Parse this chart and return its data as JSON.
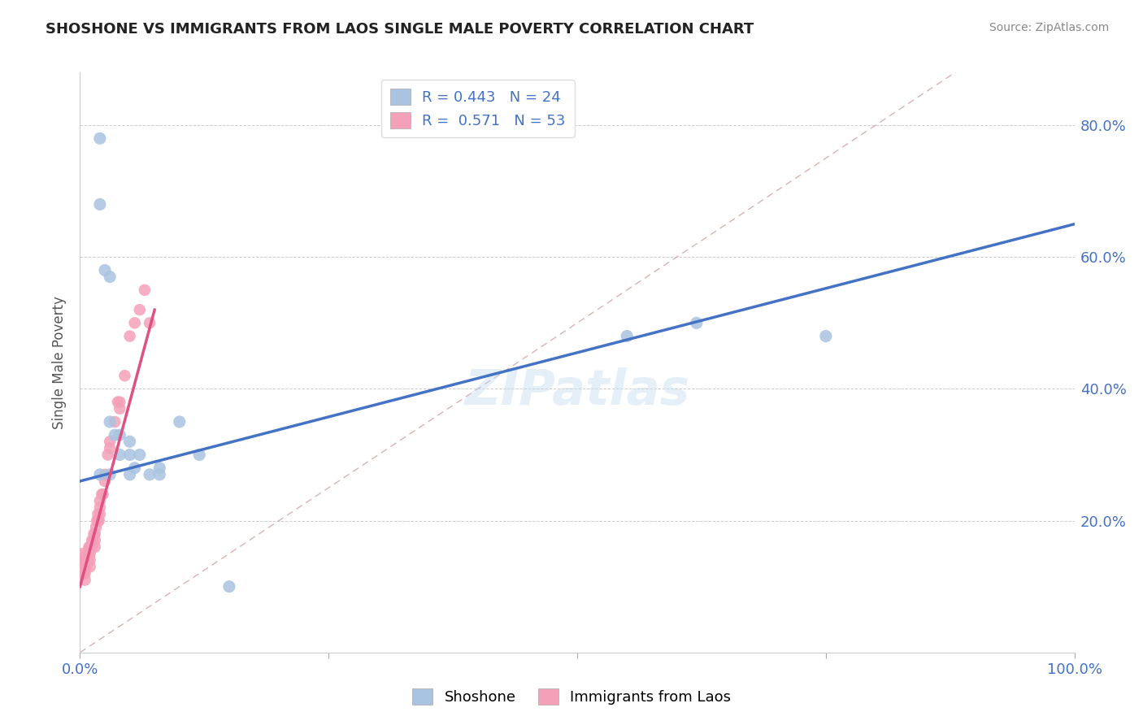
{
  "title": "SHOSHONE VS IMMIGRANTS FROM LAOS SINGLE MALE POVERTY CORRELATION CHART",
  "source": "Source: ZipAtlas.com",
  "ylabel": "Single Male Poverty",
  "watermark": "ZIPatlas",
  "shoshone_R": 0.443,
  "shoshone_N": 24,
  "laos_R": 0.571,
  "laos_N": 53,
  "shoshone_color": "#a8c4e0",
  "laos_color": "#f4a0b8",
  "shoshone_line_color": "#4472c4",
  "laos_line_color": "#e05080",
  "diagonal_color": "#d0a0a0",
  "right_axis_color": "#4472c4",
  "shoshone_x": [
    0.02,
    0.02,
    0.025,
    0.03,
    0.03,
    0.035,
    0.04,
    0.04,
    0.05,
    0.05,
    0.055,
    0.06,
    0.07,
    0.08,
    0.1,
    0.12,
    0.15,
    0.55,
    0.62,
    0.75,
    0.02,
    0.03,
    0.05,
    0.08
  ],
  "shoshone_y": [
    0.78,
    0.68,
    0.58,
    0.57,
    0.35,
    0.33,
    0.33,
    0.3,
    0.32,
    0.3,
    0.28,
    0.3,
    0.27,
    0.28,
    0.35,
    0.3,
    0.1,
    0.48,
    0.5,
    0.48,
    0.27,
    0.27,
    0.27,
    0.27
  ],
  "laos_x": [
    0.002,
    0.003,
    0.003,
    0.004,
    0.004,
    0.005,
    0.005,
    0.005,
    0.005,
    0.006,
    0.006,
    0.007,
    0.007,
    0.008,
    0.008,
    0.009,
    0.009,
    0.01,
    0.01,
    0.01,
    0.01,
    0.012,
    0.012,
    0.013,
    0.014,
    0.015,
    0.015,
    0.015,
    0.016,
    0.017,
    0.018,
    0.018,
    0.019,
    0.02,
    0.02,
    0.02,
    0.022,
    0.023,
    0.025,
    0.025,
    0.028,
    0.03,
    0.03,
    0.035,
    0.038,
    0.04,
    0.04,
    0.045,
    0.05,
    0.055,
    0.06,
    0.065,
    0.07
  ],
  "laos_y": [
    0.14,
    0.15,
    0.13,
    0.14,
    0.12,
    0.14,
    0.13,
    0.12,
    0.11,
    0.14,
    0.13,
    0.15,
    0.14,
    0.15,
    0.14,
    0.16,
    0.15,
    0.16,
    0.15,
    0.14,
    0.13,
    0.17,
    0.16,
    0.17,
    0.18,
    0.18,
    0.17,
    0.16,
    0.19,
    0.2,
    0.2,
    0.21,
    0.2,
    0.22,
    0.21,
    0.23,
    0.24,
    0.24,
    0.26,
    0.27,
    0.3,
    0.32,
    0.31,
    0.35,
    0.38,
    0.38,
    0.37,
    0.42,
    0.48,
    0.5,
    0.52,
    0.55,
    0.5
  ],
  "xlim": [
    0.0,
    1.0
  ],
  "ylim": [
    0.0,
    0.88
  ],
  "yticks": [
    0.0,
    0.2,
    0.4,
    0.6,
    0.8
  ],
  "ytick_labels_right": [
    "",
    "20.0%",
    "40.0%",
    "60.0%",
    "80.0%"
  ],
  "xtick_positions": [
    0.0,
    0.25,
    0.5,
    0.75,
    1.0
  ],
  "xtick_labels": [
    "0.0%",
    "",
    "",
    "",
    "100.0%"
  ],
  "shoshone_line_x": [
    0.0,
    1.0
  ],
  "shoshone_line_y": [
    0.26,
    0.65
  ],
  "laos_line_x": [
    0.0,
    0.075
  ],
  "laos_line_y": [
    0.1,
    0.52
  ]
}
